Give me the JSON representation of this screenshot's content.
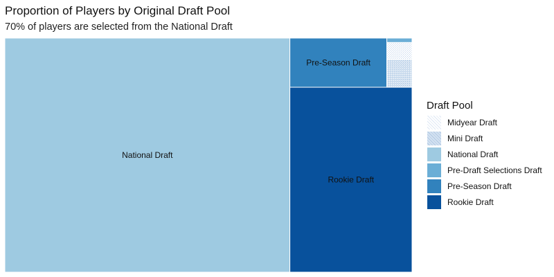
{
  "chart_data": {
    "type": "treemap",
    "title": "Proportion of Players by Original Draft Pool",
    "subtitle": "70% of players are selected from the National Draft",
    "legend_title": "Draft Pool",
    "legend_position": "right",
    "categories": [
      "Midyear Draft",
      "Mini Draft",
      "National Draft",
      "Pre-Draft Selections Draft",
      "Pre-Season Draft",
      "Rookie Draft"
    ],
    "values": [
      0.3,
      0.5,
      70.0,
      0.5,
      5.0,
      23.7
    ],
    "value_unit": "%",
    "colors": [
      "#eff3ff",
      "#c6dbef",
      "#9ecae1",
      "#6baed6",
      "#3182bd",
      "#08519c"
    ],
    "tile_labels": {
      "National Draft": "National Draft",
      "Rookie Draft": "Rookie Draft",
      "Pre-Season Draft": "Pre-Season Draft"
    }
  }
}
